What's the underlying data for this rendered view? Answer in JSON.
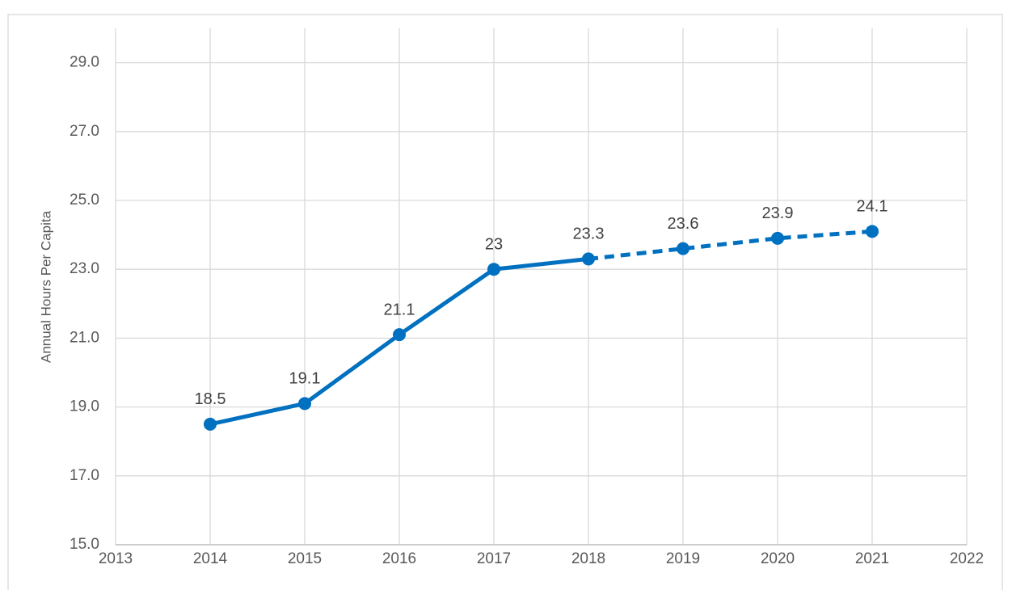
{
  "chart_data": {
    "type": "line",
    "y_label": "Annual Hours Per Capita",
    "x": [
      2014,
      2015,
      2016,
      2017,
      2018,
      2019,
      2020,
      2021
    ],
    "series": [
      {
        "color": "#0070c0",
        "dashed": false,
        "values": [
          18.5,
          19.1,
          21.1,
          23,
          23.3,
          null,
          null,
          null
        ]
      },
      {
        "color": "#0070c0",
        "dashed": true,
        "values": [
          null,
          null,
          null,
          null,
          23.3,
          23.6,
          23.9,
          24.1
        ]
      }
    ],
    "xlim": [
      2013,
      2022
    ],
    "xticks": [
      2013,
      2014,
      2015,
      2016,
      2017,
      2018,
      2019,
      2020,
      2021,
      2022
    ],
    "ylim": [
      15,
      30
    ],
    "yticks": [
      {
        "value": 15,
        "label": "15.0"
      },
      {
        "value": 17,
        "label": "17.0"
      },
      {
        "value": 19,
        "label": "19.0"
      },
      {
        "value": 21,
        "label": "21.0"
      },
      {
        "value": 23,
        "label": "23.0"
      },
      {
        "value": 25,
        "label": "25.0"
      },
      {
        "value": 27,
        "label": "27.0"
      },
      {
        "value": 29,
        "label": "29.0"
      }
    ],
    "grid": true
  }
}
